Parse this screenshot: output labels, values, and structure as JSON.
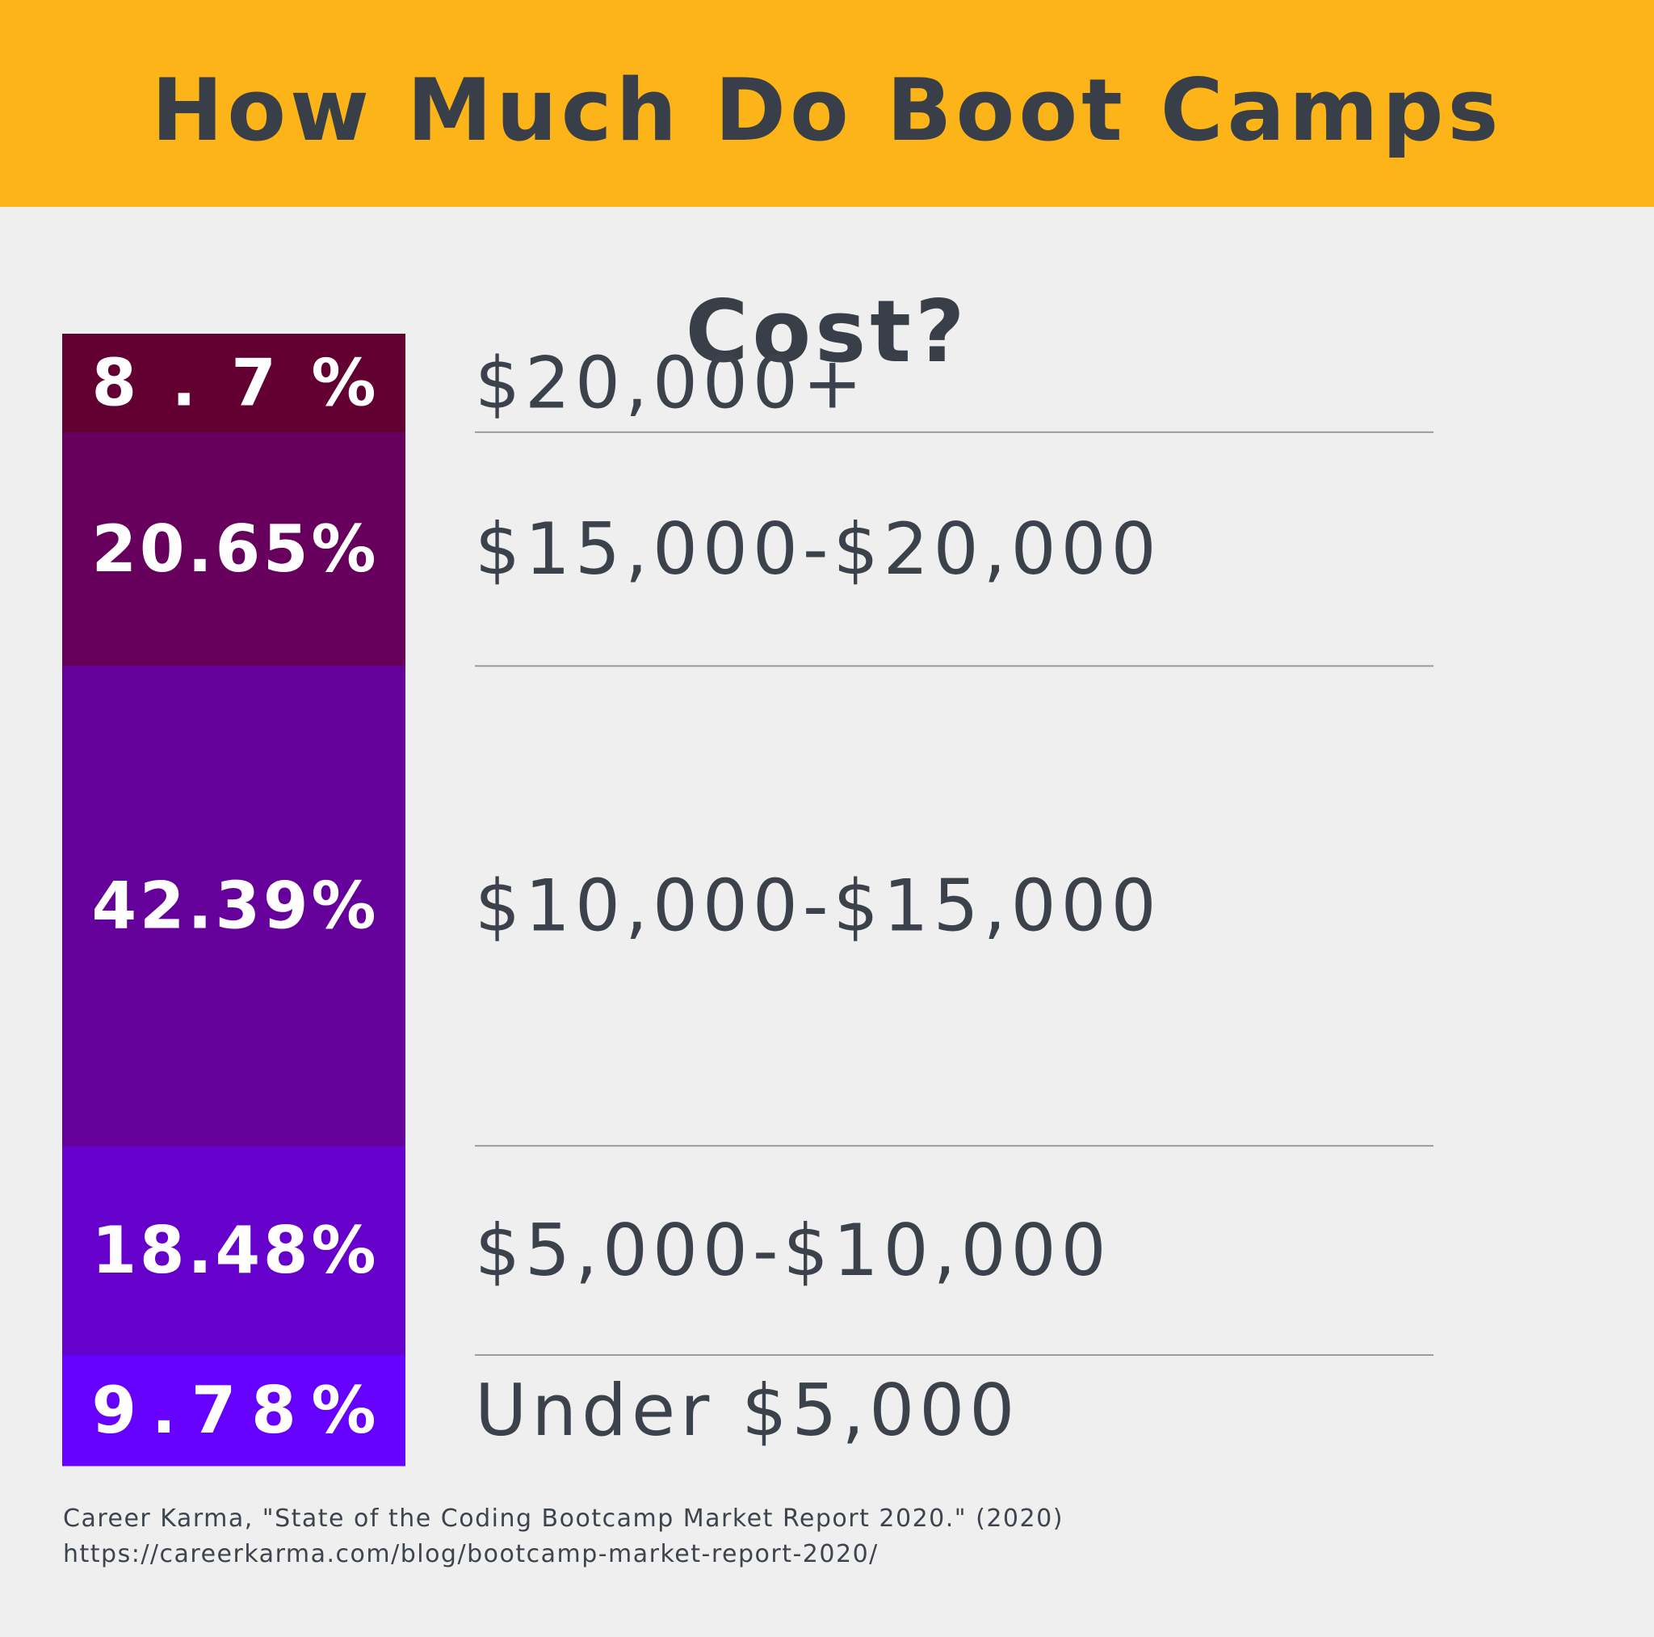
{
  "title": "How Much Do Boot Camps Cost?",
  "source": {
    "citation": "Career Karma, \"State of the Coding Bootcamp Market Report 2020.\" (2020)",
    "url": "https://careerkarma.com/blog/bootcamp-market-report-2020/"
  },
  "colors": {
    "header": "#fdb418",
    "background": "#efefef",
    "text": "#383f48"
  },
  "chart_data": {
    "type": "bar",
    "stacked": true,
    "orientation": "vertical",
    "title": "How Much Do Boot Camps Cost?",
    "unit": "%",
    "categories": [
      "$20,000+",
      "$15,000-$20,000",
      "$10,000-$15,000",
      "$5,000-$10,000",
      "Under $5,000"
    ],
    "values": [
      8.7,
      20.65,
      42.39,
      18.48,
      9.78
    ],
    "labels": [
      "8.7%",
      "20.65%",
      "42.39%",
      "18.48%",
      "9.78%"
    ],
    "colors": [
      "#620032",
      "#66005c",
      "#66009b",
      "#6600cb",
      "#6600ff"
    ],
    "legend": "right"
  }
}
